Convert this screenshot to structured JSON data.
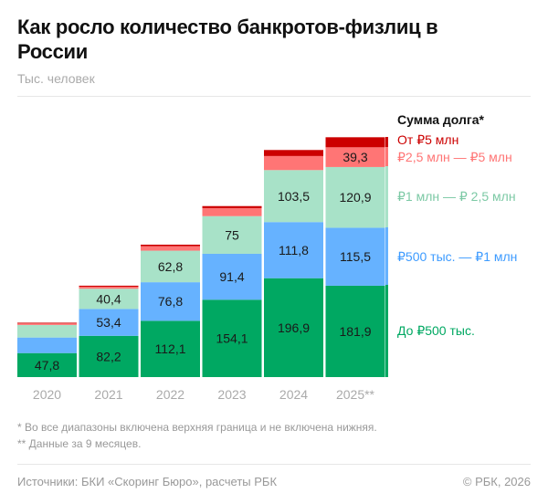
{
  "header": {
    "title": "Как росло количество банкротов-физлиц в России",
    "subtitle": "Тыс. человек"
  },
  "chart_data": {
    "type": "bar",
    "stacked": true,
    "title": "Как росло количество банкротов-физлиц в России",
    "ylabel": "Тыс. человек",
    "categories": [
      "2020",
      "2021",
      "2022",
      "2023",
      "2024",
      "2025**"
    ],
    "legend_title": "Сумма долга*",
    "legend_placement": "right",
    "series": [
      {
        "name": "До ₽500 тыс.",
        "color": "#00a862",
        "values": [
          47.8,
          82.2,
          112.1,
          154.1,
          196.9,
          181.9
        ],
        "labels": [
          "47,8",
          "82,2",
          "112,1",
          "154,1",
          "196,9",
          "181,9"
        ]
      },
      {
        "name": "₽500 тыс. — ₽1 млн",
        "color": "#66b2ff",
        "values": [
          31,
          53.4,
          76.8,
          91.4,
          111.8,
          115.5
        ],
        "labels": [
          "",
          "53,4",
          "76,8",
          "91,4",
          "111,8",
          "115,5"
        ]
      },
      {
        "name": "₽1 млн — ₽ 2,5 млн",
        "color": "#a8e2c8",
        "values": [
          25,
          40.4,
          62.8,
          75,
          103.5,
          120.9
        ],
        "labels": [
          "",
          "40,4",
          "62,8",
          "75",
          "103,5",
          "120,9"
        ]
      },
      {
        "name": "₽2,5 млн — ₽5 млн",
        "color": "#ff7575",
        "values": [
          3,
          4,
          9,
          16,
          28,
          39.3
        ],
        "labels": [
          "",
          "",
          "",
          "",
          "",
          "39,3"
        ]
      },
      {
        "name": "От ₽5 млн",
        "color": "#cc0000",
        "values": [
          1.5,
          2,
          3,
          4,
          12,
          20
        ],
        "labels": [
          "",
          "",
          "",
          "",
          "",
          ""
        ]
      }
    ],
    "legend_colors": [
      "#cc0000",
      "#ff7575",
      "#7cc9a5",
      "#3d9bff",
      "#00a862"
    ]
  },
  "footnotes": [
    "* Во все диапазоны включена верхняя граница и не включена нижняя.",
    "** Данные за 9 месяцев."
  ],
  "footer": {
    "source": "Источники: БКИ «Скоринг Бюро», расчеты РБК",
    "copyright": "© РБК, 2026"
  }
}
